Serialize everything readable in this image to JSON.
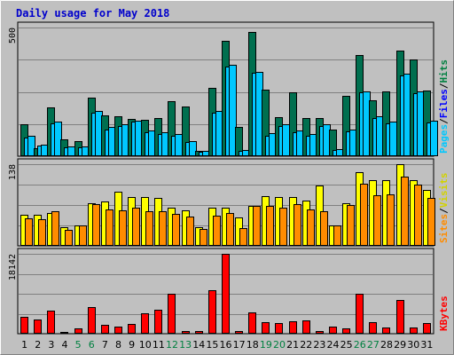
{
  "chart_data": {
    "type": "bar",
    "title": "Daily usage for May 2018",
    "categories": [
      "1",
      "2",
      "3",
      "4",
      "5",
      "6",
      "7",
      "8",
      "9",
      "10",
      "11",
      "12",
      "13",
      "14",
      "15",
      "16",
      "17",
      "18",
      "19",
      "20",
      "21",
      "22",
      "23",
      "24",
      "25",
      "26",
      "27",
      "28",
      "29",
      "30",
      "31"
    ],
    "weekend_days": [
      "5",
      "6",
      "12",
      "13",
      "19",
      "20",
      "26",
      "27"
    ],
    "colors": {
      "background": "#c0c0c0",
      "hits": "#006f4f",
      "files": "#00c8ff",
      "pages": "#00c8ff",
      "visits": "#ffff00",
      "sites": "#ff8c00",
      "kbytes": "#ff0000",
      "weekday_label": "#000000",
      "weekend_label": "#008040",
      "title": "#0000cc"
    },
    "panels": [
      {
        "name": "hits-files-pages",
        "ymax": 500,
        "ymax_label": "500",
        "side_label": [
          "Pages",
          "/",
          "Files",
          "/",
          "Hits"
        ],
        "side_label_colors": [
          "#00c8ff",
          "#000000",
          "#0000ff",
          "#000000",
          "#008040"
        ],
        "series": [
          {
            "name": "Hits",
            "values": [
              124,
              31,
              191,
              64,
              59,
              229,
              158,
              154,
              146,
              141,
              147,
              213,
              192,
              20,
              265,
              448,
              114,
              483,
              259,
              152,
              247,
              149,
              148,
              104,
              234,
              392,
              216,
              253,
              409,
              376,
              255
            ]
          },
          {
            "name": "Files",
            "values": [
              74,
              41,
              128,
              36,
              36,
              168,
              105,
              116,
              133,
              93,
              86,
              79,
              54,
              17,
              168,
              348,
              20,
              323,
              80,
              117,
              93,
              81,
              118,
              25,
              95,
              247,
              147,
              129,
              315,
              244,
              131
            ]
          },
          {
            "name": "Pages",
            "values": [
              78,
              45,
              134,
              38,
              39,
              177,
              114,
              125,
              139,
              101,
              94,
              86,
              60,
              19,
              176,
              354,
              24,
              328,
              88,
              123,
              101,
              87,
              124,
              29,
              102,
              253,
              154,
              136,
              322,
              251,
              137
            ]
          }
        ]
      },
      {
        "name": "sites-visits",
        "ymax": 138,
        "ymax_label": "138",
        "side_label": [
          "Sites",
          "/",
          "Visits"
        ],
        "side_label_colors": [
          "#ff8c00",
          "#000000",
          "#d2d200"
        ],
        "series": [
          {
            "name": "Visits",
            "values": [
              53,
              52,
              55,
              31,
              35,
              72,
              75,
              91,
              82,
              83,
              81,
              65,
              60,
              31,
              65,
              64,
              48,
              68,
              84,
              82,
              83,
              77,
              102,
              35,
              72,
              124,
              111,
              111,
              138,
              111,
              94
            ]
          },
          {
            "name": "Sites",
            "values": [
              46,
              45,
              59,
              27,
              34,
              70,
              61,
              60,
              65,
              58,
              59,
              54,
              49,
              28,
              51,
              56,
              30,
              67,
              68,
              64,
              71,
              62,
              58,
              35,
              69,
              105,
              85,
              87,
              117,
              103,
              81
            ]
          }
        ]
      },
      {
        "name": "kbytes",
        "ymax": 18142,
        "ymax_label": "18142",
        "side_label": [
          "KBytes"
        ],
        "side_label_colors": [
          "#ff0000"
        ],
        "series": [
          {
            "name": "KBytes",
            "values": [
              3853,
              3165,
              5216,
              473,
              1155,
              6112,
              1940,
              1706,
              2258,
              4587,
              5443,
              9078,
              655,
              682,
              9812,
              18142,
              520,
              4780,
              2671,
              2432,
              2724,
              2932,
              600,
              1650,
              1310,
              9157,
              2656,
              1376,
              7745,
              1320,
              2362
            ]
          }
        ]
      }
    ]
  }
}
